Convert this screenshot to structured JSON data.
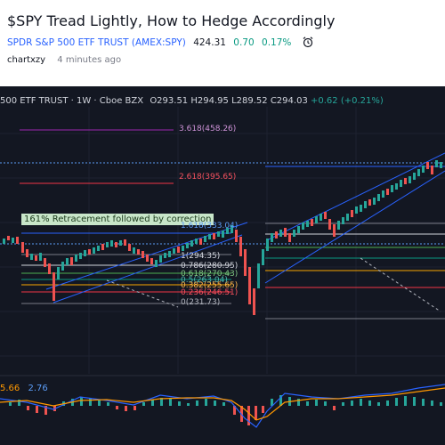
{
  "header": {
    "title": "$SPY Tread Lightly, How to Hedge Accordingly",
    "symbol_name": "SPDR S&P 500 ETF TRUST (AMEX:SPY)",
    "price": "424.31",
    "change": "0.70",
    "change_pct": "0.17%",
    "author": "chartxzy",
    "time": "4 minutes ago"
  },
  "chart": {
    "ohlc_name": "500 ETF TRUST · 1W · Cboe BZX",
    "ohlc_o": "O293.51",
    "ohlc_h": "H294.95",
    "ohlc_l": "L289.52",
    "ohlc_c": "C294.03",
    "ohlc_change": "+0.62 (+0.21%)",
    "note": "161% Retracement followed by correction",
    "fib_right": [
      {
        "label": "3.618(458.26)",
        "color": "#9c27b0"
      },
      {
        "label": "2.618(395.65)",
        "color": "#f23645"
      }
    ],
    "fib_left": [
      {
        "label": "1.618(333.04)",
        "color": "#2962ff"
      },
      {
        "label": "1(294.35)",
        "color": "#787b86"
      },
      {
        "label": "0.786(280.95)",
        "color": "#d1d4dc"
      },
      {
        "label": "0.618(270.43)",
        "color": "#4caf50"
      },
      {
        "label": "0.5(263.04)",
        "color": "#089981"
      },
      {
        "label": "0.382(255.65)",
        "color": "#f7a600"
      },
      {
        "label": "0.236(246.51)",
        "color": "#f23645"
      },
      {
        "label": "0(231.73)",
        "color": "#787b86"
      }
    ],
    "indicator_val1": "5.66",
    "indicator_val2": "2.76",
    "colors": {
      "up": "#26a69a",
      "down": "#ef5350",
      "bg": "#131722",
      "ink_blue": "#2962ff"
    }
  }
}
